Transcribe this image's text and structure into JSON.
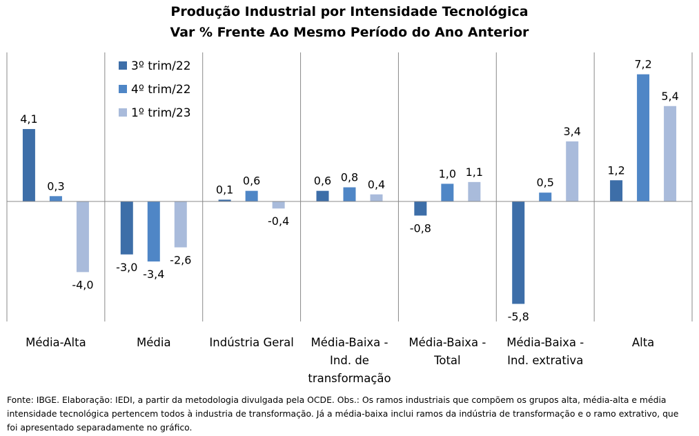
{
  "chart_data": {
    "type": "bar",
    "title": "Produção Industrial por Intensidade Tecnológica",
    "subtitle": "Var % Frente Ao Mesmo Período do Ano Anterior",
    "categories": [
      [
        "Média-Alta"
      ],
      [
        "Média"
      ],
      [
        "Indústria Geral"
      ],
      [
        "Média-Baixa -",
        "Ind. de",
        "transformação"
      ],
      [
        "Média-Baixa -",
        "Total"
      ],
      [
        "Média-Baixa -",
        "Ind. extrativa"
      ],
      [
        "Alta"
      ]
    ],
    "series": [
      {
        "name": "3º trim/22",
        "color": "#3d6ea8",
        "values": [
          4.1,
          -3.0,
          0.1,
          0.6,
          -0.8,
          -5.8,
          1.2
        ],
        "labels": [
          "4,1",
          "-3,0",
          "0,1",
          "0,6",
          "-0,8",
          "-5,8",
          "1,2"
        ]
      },
      {
        "name": "4º trim/22",
        "color": "#4f86c6",
        "values": [
          0.3,
          -3.4,
          0.6,
          0.8,
          1.0,
          0.5,
          7.2
        ],
        "labels": [
          "0,3",
          "-3,4",
          "0,6",
          "0,8",
          "1,0",
          "0,5",
          "7,2"
        ]
      },
      {
        "name": "1º trim/23",
        "color": "#a9bbdb",
        "values": [
          -4.0,
          -2.6,
          -0.4,
          0.4,
          1.1,
          3.4,
          5.4
        ],
        "labels": [
          "-4,0",
          "-2,6",
          "-0,4",
          "0,4",
          "1,1",
          "3,4",
          "5,4"
        ]
      }
    ],
    "ylim": [
      -8,
      8
    ],
    "grid": false,
    "legend_position": "top-left"
  },
  "footer": "Fonte: IBGE. Elaboração: IEDI, a partir da metodologia divulgada pela OCDE. Obs.: Os ramos industriais que compõem  os grupos alta, média-alta e média intensidade tecnológica pertencem todos à industria de transformação. Já a média-baixa inclui ramos da indústria de transformação e o ramo extrativo, que foi apresentado separadamente no gráfico."
}
